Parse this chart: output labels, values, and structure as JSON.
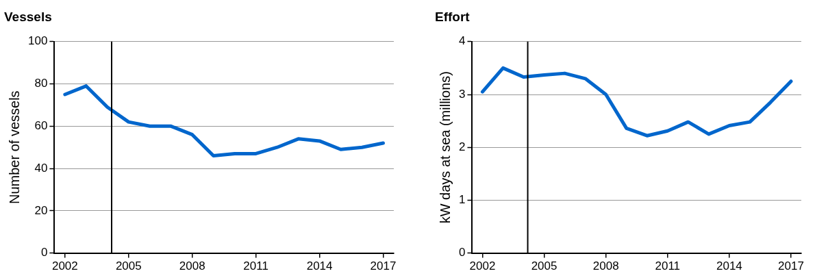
{
  "chart_data": [
    {
      "type": "line",
      "title": "Vessels",
      "ylabel": "Number of vessels",
      "x": [
        2002,
        2003,
        2004,
        2005,
        2006,
        2007,
        2008,
        2009,
        2010,
        2011,
        2012,
        2013,
        2014,
        2015,
        2016,
        2017
      ],
      "series": [
        {
          "color": "#0066cc",
          "values": [
            75,
            79,
            69,
            62,
            60,
            60,
            56,
            46,
            47,
            47,
            50,
            54,
            53,
            49,
            50,
            52
          ]
        }
      ],
      "xlim": [
        2001.5,
        2017.5
      ],
      "xticks": [
        2002,
        2005,
        2008,
        2011,
        2014,
        2017
      ],
      "ylim": [
        0,
        100
      ],
      "yticks": [
        0,
        20,
        40,
        60,
        80,
        100
      ],
      "grid": "y",
      "marker": "none",
      "line_style": "solid",
      "ref_lines": [
        {
          "axis": "x",
          "value": 2004.2,
          "color": "#000000"
        }
      ]
    },
    {
      "type": "line",
      "title": "Effort",
      "ylabel": "kW days at sea (millions)",
      "x": [
        2002,
        2003,
        2004,
        2005,
        2006,
        2007,
        2008,
        2009,
        2010,
        2011,
        2012,
        2013,
        2014,
        2015,
        2016,
        2017
      ],
      "series": [
        {
          "color": "#0066cc",
          "values": [
            3.05,
            3.5,
            3.33,
            3.37,
            3.4,
            3.3,
            3.0,
            2.36,
            2.22,
            2.31,
            2.48,
            2.25,
            2.41,
            2.48,
            2.85,
            3.25
          ]
        }
      ],
      "xlim": [
        2001.5,
        2017.5
      ],
      "xticks": [
        2002,
        2005,
        2008,
        2011,
        2014,
        2017
      ],
      "ylim": [
        0,
        4
      ],
      "yticks": [
        0,
        1,
        2,
        3,
        4
      ],
      "grid": "y",
      "marker": "none",
      "line_style": "solid",
      "ref_lines": [
        {
          "axis": "x",
          "value": 2004.2,
          "color": "#000000"
        }
      ]
    }
  ]
}
